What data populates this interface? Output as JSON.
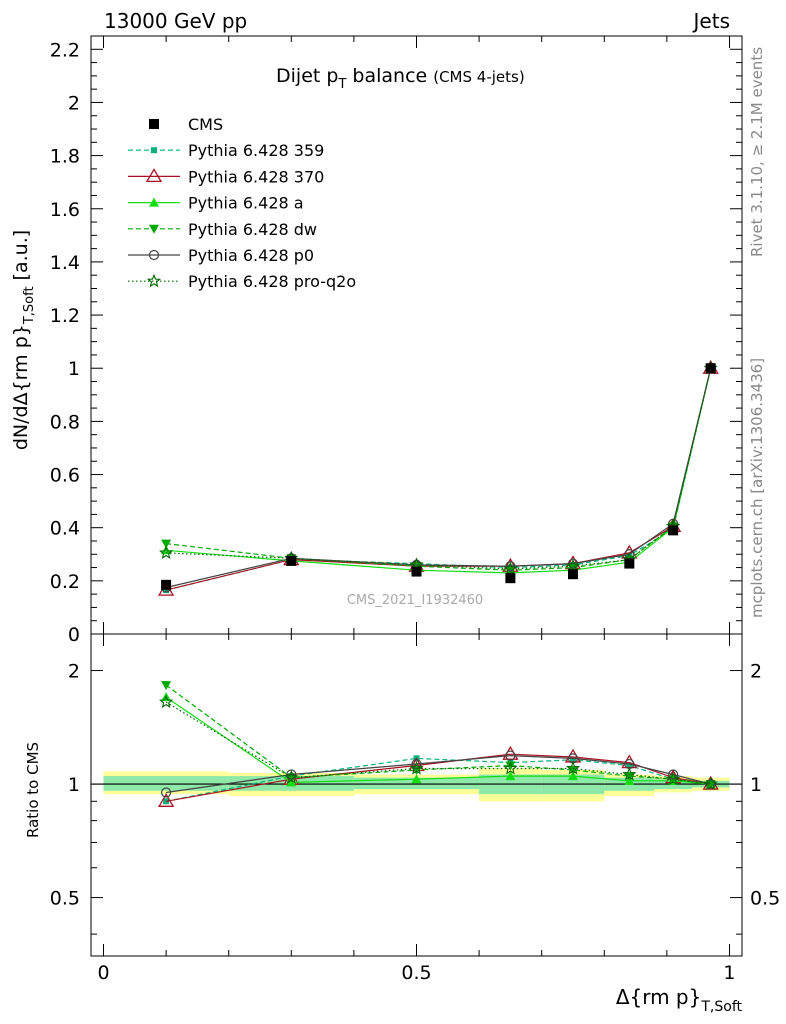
{
  "header": {
    "left": "13000 GeV pp",
    "right": "Jets"
  },
  "side": {
    "rivet": "Rivet 3.1.10, ≥ 2.1M events",
    "mcplots": "mcplots.cern.ch [arXiv:1306.3436]"
  },
  "chart_data": {
    "type": "line",
    "title_main": "Dijet p",
    "title_sub": "T",
    "title_rest": " balance",
    "title_note": "(CMS 4-jets)",
    "watermark": "CMS_2021_I1932460",
    "ylabel_main": "dN/dΔ{rm p}",
    "ylabel_sub": "T,Soft",
    "ylabel_unit": "[a.u.]",
    "xlabel_main": "Δ{rm p}",
    "xlabel_sub": "T,Soft",
    "ratio_ylabel": "Ratio to CMS",
    "xlim": [
      -0.02,
      1.02
    ],
    "ylim": [
      0,
      2.25
    ],
    "ratio_ylim": [
      0.35,
      2.5
    ],
    "ratio_log": true,
    "x_ticks": [
      0,
      0.5,
      1
    ],
    "x_tick_labels": [
      "0",
      "0.5",
      "1"
    ],
    "y_ticks": [
      0,
      0.2,
      0.4,
      0.6,
      0.8,
      1,
      1.2,
      1.4,
      1.6,
      1.8,
      2,
      2.2
    ],
    "y_tick_labels": [
      "0",
      "0.2",
      "0.4",
      "0.6",
      "0.8",
      "1",
      "1.2",
      "1.4",
      "1.6",
      "1.8",
      "2",
      "2.2"
    ],
    "ratio_ticks": [
      0.5,
      1,
      2
    ],
    "ratio_tick_labels": [
      "0.5",
      "1",
      "2"
    ],
    "x": [
      0.1,
      0.3,
      0.5,
      0.65,
      0.75,
      0.84,
      0.91,
      0.97
    ],
    "bin_edges": [
      0,
      0.2,
      0.4,
      0.6,
      0.7,
      0.8,
      0.88,
      0.94,
      1.0
    ],
    "band_yellow": [
      [
        0.94,
        1.08
      ],
      [
        0.93,
        1.07
      ],
      [
        0.94,
        1.06
      ],
      [
        0.9,
        1.1
      ],
      [
        0.9,
        1.09
      ],
      [
        0.93,
        1.06
      ],
      [
        0.95,
        1.05
      ],
      [
        0.96,
        1.04
      ]
    ],
    "band_green": [
      [
        0.96,
        1.05
      ],
      [
        0.96,
        1.05
      ],
      [
        0.97,
        1.04
      ],
      [
        0.94,
        1.06
      ],
      [
        0.94,
        1.06
      ],
      [
        0.96,
        1.04
      ],
      [
        0.97,
        1.03
      ],
      [
        0.98,
        1.02
      ]
    ],
    "data": {
      "name": "CMS",
      "values": [
        0.185,
        0.275,
        0.235,
        0.21,
        0.225,
        0.265,
        0.39,
        1.0
      ]
    },
    "series": [
      {
        "name": "Pythia 6.428 359",
        "color": "#00b37a",
        "dash": "5,3",
        "marker": "square-small",
        "values": [
          0.165,
          0.28,
          0.265,
          0.25,
          0.26,
          0.295,
          0.395,
          1.0
        ],
        "ratio": [
          0.9,
          1.05,
          1.17,
          1.14,
          1.16,
          1.12,
          1.03,
          1.0
        ]
      },
      {
        "name": "Pythia 6.428 370",
        "color": "#aa1122",
        "dash": "",
        "marker": "triangle-up-open",
        "values": [
          0.165,
          0.28,
          0.255,
          0.255,
          0.265,
          0.305,
          0.405,
          1.0
        ],
        "ratio": [
          0.9,
          1.03,
          1.12,
          1.2,
          1.18,
          1.14,
          1.04,
          1.0
        ]
      },
      {
        "name": "Pythia 6.428 a",
        "color": "#11dd11",
        "dash": "",
        "marker": "triangle-up",
        "values": [
          0.315,
          0.275,
          0.24,
          0.23,
          0.24,
          0.27,
          0.4,
          1.0
        ],
        "ratio": [
          1.7,
          1.01,
          1.03,
          1.05,
          1.05,
          1.02,
          1.02,
          1.0
        ]
      },
      {
        "name": "Pythia 6.428 dw",
        "color": "#00aa00",
        "dash": "5,3",
        "marker": "triangle-down",
        "values": [
          0.34,
          0.285,
          0.255,
          0.24,
          0.25,
          0.28,
          0.405,
          1.0
        ],
        "ratio": [
          1.83,
          1.04,
          1.09,
          1.12,
          1.09,
          1.05,
          1.03,
          1.0
        ]
      },
      {
        "name": "Pythia 6.428 p0",
        "color": "#444444",
        "dash": "",
        "marker": "circle-open",
        "values": [
          0.175,
          0.285,
          0.26,
          0.255,
          0.265,
          0.3,
          0.415,
          1.0
        ],
        "ratio": [
          0.95,
          1.06,
          1.13,
          1.19,
          1.17,
          1.13,
          1.06,
          1.0
        ]
      },
      {
        "name": "Pythia 6.428 pro-q2o",
        "color": "#006600",
        "dash": "1.5,2.5",
        "marker": "star",
        "values": [
          0.305,
          0.285,
          0.26,
          0.245,
          0.255,
          0.28,
          0.405,
          1.0
        ],
        "ratio": [
          1.65,
          1.04,
          1.1,
          1.1,
          1.1,
          1.06,
          1.03,
          1.0
        ]
      }
    ]
  }
}
